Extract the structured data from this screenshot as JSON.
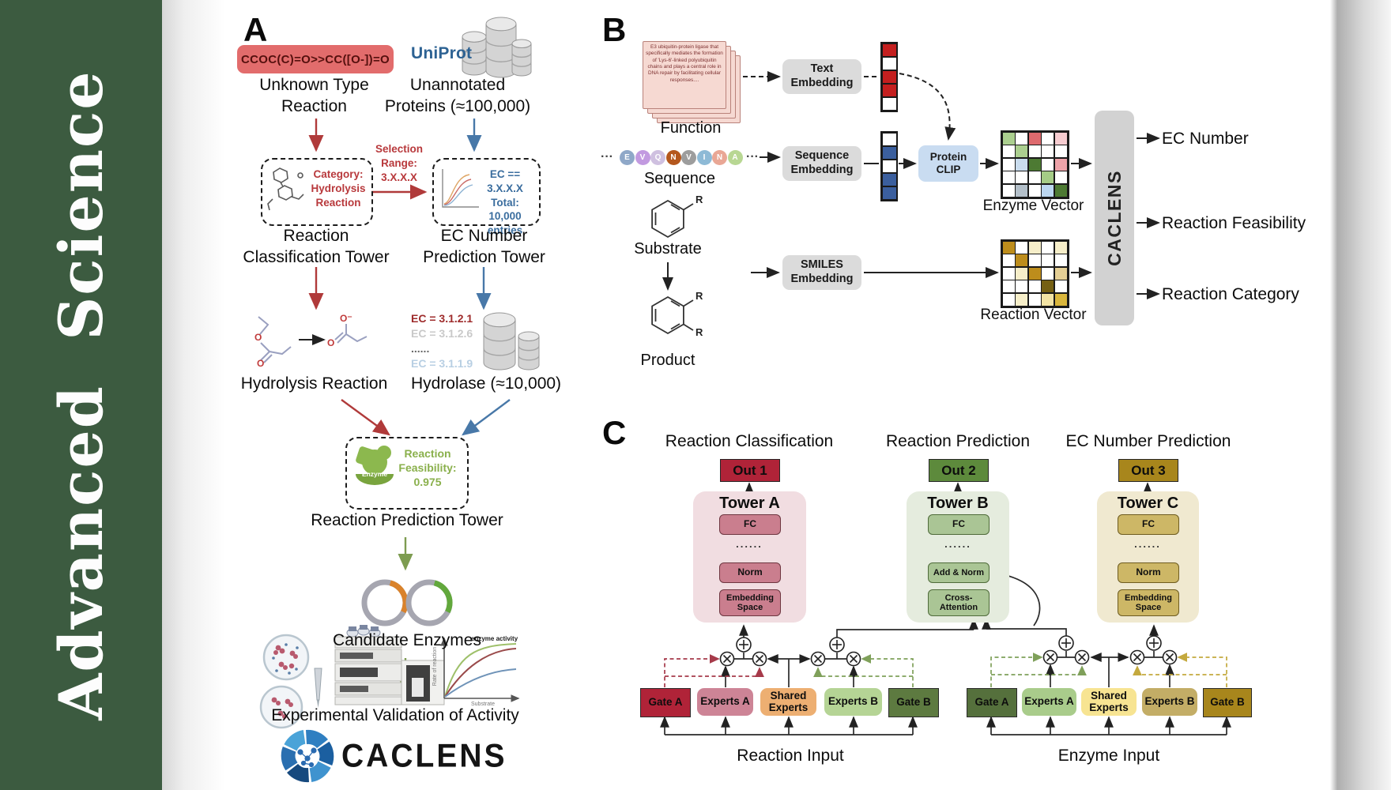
{
  "sidebar": {
    "title": "Advanced  Science",
    "bg": "#3c5b40"
  },
  "panelA": {
    "label": "A",
    "smiles": "CCOC(C)=O>>CC([O-])=O",
    "unknown_reaction": "Unknown Type\nReaction",
    "uniprot": "UniProt",
    "unannotated": "Unannotated\nProteins (≈100,000)",
    "category_box": "Category:\nHydrolysis\nReaction",
    "selection": "Selection\nRange:\n3.X.X.X",
    "ec_box": "EC == 3.X.X.X\nTotal: 10,000\nentries",
    "classification_tower": "Reaction\nClassification Tower",
    "ec_tower": "EC Number\nPrediction Tower",
    "hydrolysis": "Hydrolysis Reaction",
    "ec_list": [
      {
        "text": "EC = 3.1.2.1",
        "color": "#9e2b2b"
      },
      {
        "text": "EC = 3.1.2.6",
        "color": "#c9c9c9"
      },
      {
        "text": "......",
        "color": "#666666"
      },
      {
        "text": "EC = 3.1.1.9",
        "color": "#b8cfe3"
      }
    ],
    "hydrolase": "Hydrolase (≈10,000)",
    "enzyme_badge": "Enzyme",
    "feasibility": "Reaction\nFeasibility:\n0.975",
    "prediction_tower": "Reaction Prediction Tower",
    "candidates": "Candidate Enzymes",
    "plot": {
      "title": "enzyme activity",
      "ylabel": "Rate of reaction",
      "xlabel": "Substrate"
    },
    "validation": "Experimental Validation of Activity",
    "brand": "CACLENS",
    "atoms": {
      "o": "O",
      "ominus": "O⁻"
    }
  },
  "panelB": {
    "label": "B",
    "function_card": "E3 ubiquitin-protein ligase that specifically mediates the formation of 'Lys-6'-linked polyubiquitin chains and plays a central role in DNA repair by facilitating cellular responses....",
    "function_label": "Function",
    "text_embedding": "Text\nEmbedding",
    "sequence_label": "Sequence",
    "sequence_embedding": "Sequence\nEmbedding",
    "smiles_embedding": "SMILES\nEmbedding",
    "protein_clip": "Protein\nCLIP",
    "ellipsis": "···",
    "sequence": [
      {
        "letter": "E",
        "color": "#8fa8c8"
      },
      {
        "letter": "V",
        "color": "#c29ae0"
      },
      {
        "letter": "Q",
        "color": "#cfc0e0"
      },
      {
        "letter": "N",
        "color": "#b4571d"
      },
      {
        "letter": "V",
        "color": "#9d9d9d"
      },
      {
        "letter": "I",
        "color": "#8ebad6"
      },
      {
        "letter": "N",
        "color": "#e9a795"
      },
      {
        "letter": "A",
        "color": "#b8d793"
      }
    ],
    "text_vector": [
      "#c41f1f",
      "#ffffff",
      "#c41f1f",
      "#c41f1f",
      "#ffffff"
    ],
    "seq_vector": [
      "#ffffff",
      "#3b5f9e",
      "#ffffff",
      "#3b5f9e",
      "#3b5f9e"
    ],
    "enzyme_vector": {
      "label": "Enzyme Vector",
      "cells": [
        [
          "#abcf8f",
          "#ffffff",
          "#de6a6e",
          "#ffffff",
          "#f6ccd0"
        ],
        [
          "#ffffff",
          "#abcf8f",
          "#ffffff",
          "#ffffff",
          "#ffffff"
        ],
        [
          "#ffffff",
          "#c9dcee",
          "#4d7a33",
          "#ffffff",
          "#eea3a9"
        ],
        [
          "#ffffff",
          "#ffffff",
          "#ffffff",
          "#a5cc86",
          "#ffffff"
        ],
        [
          "#ffffff",
          "#b3bfc9",
          "#ffffff",
          "#bcd7f0",
          "#4d7a33"
        ]
      ]
    },
    "reaction_vector": {
      "label": "Reaction Vector",
      "cells": [
        [
          "#bd8d1c",
          "#ffffff",
          "#f6eec9",
          "#ffffff",
          "#f6eec9"
        ],
        [
          "#ffffff",
          "#bd8d1c",
          "#ffffff",
          "#ffffff",
          "#ffffff"
        ],
        [
          "#ffffff",
          "#f6eec9",
          "#bd8d1c",
          "#ffffff",
          "#e4cf95"
        ],
        [
          "#ffffff",
          "#ffffff",
          "#ffffff",
          "#756013",
          "#ffffff"
        ],
        [
          "#ffffff",
          "#f6eec9",
          "#ffffff",
          "#f2e3a4",
          "#d9b63c"
        ]
      ]
    },
    "substrate": "Substrate",
    "product": "Product",
    "r_label": "R",
    "caclens": "CACLENS",
    "outputs": [
      "EC Number",
      "Reaction Feasibility",
      "Reaction Category"
    ]
  },
  "panelC": {
    "label": "C",
    "column_titles": [
      "Reaction Classification",
      "Reaction Prediction",
      "EC Number Prediction"
    ],
    "outs": [
      "Out 1",
      "Out 2",
      "Out 3"
    ],
    "towers": [
      {
        "name": "Tower A",
        "fc": "FC",
        "dots": "......",
        "mid": "Norm",
        "base": "Embedding\nSpace"
      },
      {
        "name": "Tower B",
        "fc": "FC",
        "dots": "......",
        "mid": "Add & Norm",
        "base": "Cross-\nAttention"
      },
      {
        "name": "Tower C",
        "fc": "FC",
        "dots": "......",
        "mid": "Norm",
        "base": "Embedding\nSpace"
      }
    ],
    "reaction_group": {
      "gate_a": "Gate A",
      "experts_a": "Experts A",
      "shared": "Shared\nExperts",
      "experts_b": "Experts B",
      "gate_b": "Gate B",
      "input": "Reaction Input"
    },
    "enzyme_group": {
      "gate_a": "Gate A",
      "experts_a": "Experts A",
      "shared": "Shared\nExperts",
      "experts_b": "Experts B",
      "gate_b": "Gate B",
      "input": "Enzyme Input"
    },
    "colors": {
      "out1": "#b02338",
      "out2": "#5d8a3c",
      "out3": "#a8861c",
      "reaction_gate_a": "#b02338",
      "reaction_experts_a": "#cd8496",
      "reaction_shared": "#edaf72",
      "reaction_experts_b": "#b5d495",
      "reaction_gate_b": "#5d7a40",
      "enzyme_gate_a": "#55703c",
      "enzyme_experts_a": "#a9cc8b",
      "enzyme_shared": "#f7e492",
      "enzyme_experts_b": "#c3ad66",
      "enzyme_gate_b": "#a8861c"
    }
  }
}
